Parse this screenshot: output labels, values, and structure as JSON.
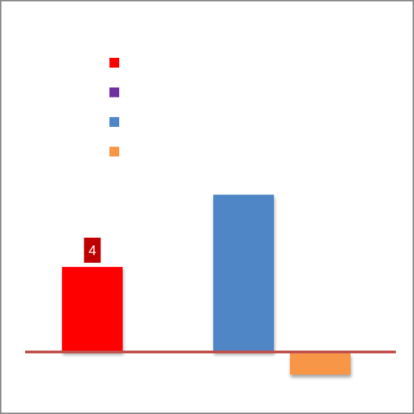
{
  "chart_data": {
    "type": "bar",
    "categories": [
      "",
      "",
      "",
      ""
    ],
    "series": [
      {
        "color": "#ff0000",
        "value": 4
      },
      {
        "color": "#7030a0",
        "value": 0
      },
      {
        "color": "#4f86c6",
        "value": 7.4
      },
      {
        "color": "#f79646",
        "value": -1
      }
    ],
    "data_labels": [
      {
        "series_index": 0,
        "text": "4",
        "background": "#c00000"
      }
    ],
    "axis_color": "#c0504d",
    "ylim": [
      -1.5,
      10
    ],
    "grid": false,
    "legend": {
      "position": "top-left",
      "entries": [
        "",
        "",
        "",
        ""
      ]
    }
  }
}
